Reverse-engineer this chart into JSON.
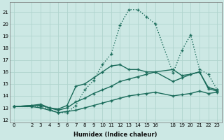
{
  "xlabel": "Humidex (Indice chaleur)",
  "bg_color": "#cce8e4",
  "line_color": "#1a6b5a",
  "grid_color": "#b0d4ce",
  "xlim": [
    -0.5,
    23.5
  ],
  "ylim": [
    11.8,
    21.8
  ],
  "xticks": [
    0,
    2,
    3,
    4,
    5,
    6,
    7,
    8,
    9,
    10,
    11,
    12,
    13,
    14,
    15,
    16,
    18,
    19,
    20,
    21,
    22,
    23
  ],
  "yticks": [
    12,
    13,
    14,
    15,
    16,
    17,
    18,
    19,
    20,
    21
  ],
  "line1_x": [
    0,
    2,
    3,
    4,
    5,
    6,
    7,
    8,
    9,
    10,
    11,
    12,
    13,
    14,
    15,
    16,
    18,
    19,
    20,
    21,
    22,
    23
  ],
  "line1_y": [
    13.1,
    13.1,
    13.1,
    12.9,
    12.6,
    12.6,
    13.2,
    14.5,
    15.3,
    16.6,
    17.5,
    19.9,
    21.2,
    21.2,
    20.6,
    20.0,
    15.9,
    17.8,
    19.1,
    16.2,
    15.8,
    14.5
  ],
  "line2_x": [
    0,
    2,
    3,
    4,
    5,
    6,
    7,
    8,
    9,
    10,
    11,
    12,
    13,
    14,
    15,
    16,
    18,
    19,
    20,
    21,
    22,
    23
  ],
  "line2_y": [
    13.1,
    13.2,
    13.3,
    13.0,
    12.9,
    13.2,
    14.8,
    15.0,
    15.5,
    16.0,
    16.5,
    16.6,
    16.2,
    16.2,
    16.0,
    16.0,
    16.2,
    15.7,
    15.8,
    16.0,
    14.7,
    14.5
  ],
  "line3_x": [
    0,
    2,
    3,
    4,
    5,
    6,
    7,
    8,
    9,
    10,
    11,
    12,
    13,
    14,
    15,
    16,
    18,
    19,
    20,
    21,
    22,
    23
  ],
  "line3_y": [
    13.1,
    13.2,
    13.2,
    13.0,
    12.8,
    13.0,
    13.5,
    13.8,
    14.2,
    14.5,
    14.8,
    15.2,
    15.4,
    15.6,
    15.8,
    16.0,
    15.2,
    15.5,
    15.8,
    16.0,
    14.6,
    14.4
  ],
  "line4_x": [
    0,
    2,
    3,
    4,
    5,
    6,
    7,
    8,
    9,
    10,
    11,
    12,
    13,
    14,
    15,
    16,
    18,
    19,
    20,
    21,
    22,
    23
  ],
  "line4_y": [
    13.1,
    13.1,
    13.0,
    12.8,
    12.6,
    12.7,
    12.8,
    13.0,
    13.2,
    13.4,
    13.6,
    13.8,
    14.0,
    14.1,
    14.2,
    14.3,
    14.0,
    14.1,
    14.2,
    14.4,
    14.2,
    14.3
  ]
}
